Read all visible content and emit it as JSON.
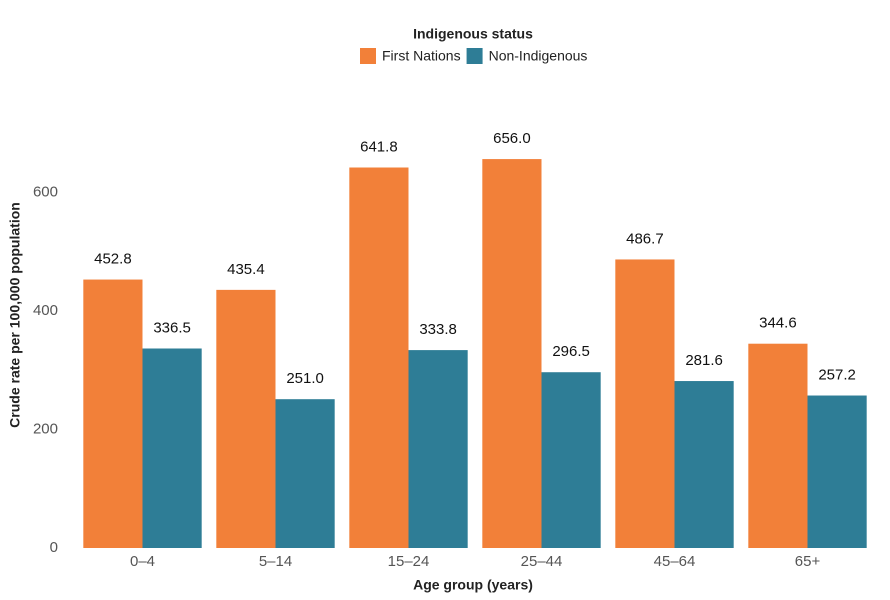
{
  "chart_data": {
    "type": "bar",
    "legend_title": "Indigenous status",
    "legend": "top",
    "x_label": "Age group (years)",
    "y_label": "Crude rate per 100,000 population",
    "categories": [
      "0–4",
      "5–14",
      "15–24",
      "25–44",
      "45–64",
      "65+"
    ],
    "series": [
      {
        "name": "First Nations",
        "color": "#f28039",
        "values": [
          452.8,
          435.4,
          641.8,
          656.0,
          486.7,
          344.6
        ],
        "value_labels": [
          "452.8",
          "435.4",
          "641.8",
          "656.0",
          "486.7",
          "344.6"
        ]
      },
      {
        "name": "Non-Indigenous",
        "color": "#2e7d96",
        "values": [
          336.5,
          251.0,
          333.8,
          296.5,
          281.6,
          257.2
        ],
        "value_labels": [
          "336.5",
          "251.0",
          "333.8",
          "296.5",
          "281.6",
          "257.2"
        ]
      }
    ],
    "ylim": [
      0,
      700
    ],
    "yticks": [
      0,
      200,
      400,
      600
    ],
    "grid": false
  }
}
